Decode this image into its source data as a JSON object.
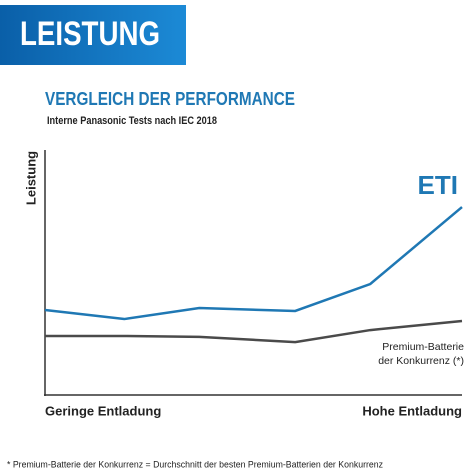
{
  "header": {
    "title": "LEISTUNG"
  },
  "chart_data": {
    "type": "line",
    "title": "VERGLEICH DER PERFORMANCE",
    "subtitle": "Interne Panasonic Tests nach IEC 2018",
    "ylabel": "Leistung",
    "x": [
      0,
      19,
      37,
      60,
      78,
      100
    ],
    "xlim": [
      0,
      100
    ],
    "xticks": [
      {
        "value": 0,
        "label": "Geringe Entladung"
      },
      {
        "value": 100,
        "label": "Hohe Entladung"
      }
    ],
    "ylim": [
      0,
      100
    ],
    "series": [
      {
        "name": "ETI",
        "color": "#1f78b4",
        "values": [
          34.7,
          31,
          35.5,
          34.3,
          45.3,
          76.7
        ]
      },
      {
        "name": "Premium-Batterie der Konkurrenz (*)",
        "color": "#4a4a4a",
        "values": [
          24.1,
          24.1,
          23.7,
          21.6,
          26.5,
          30.2
        ]
      }
    ],
    "footnote": "* Premium-Batterie der Konkurrenz = Durchschnitt der besten Premium-Batterien der Konkurrenz"
  }
}
